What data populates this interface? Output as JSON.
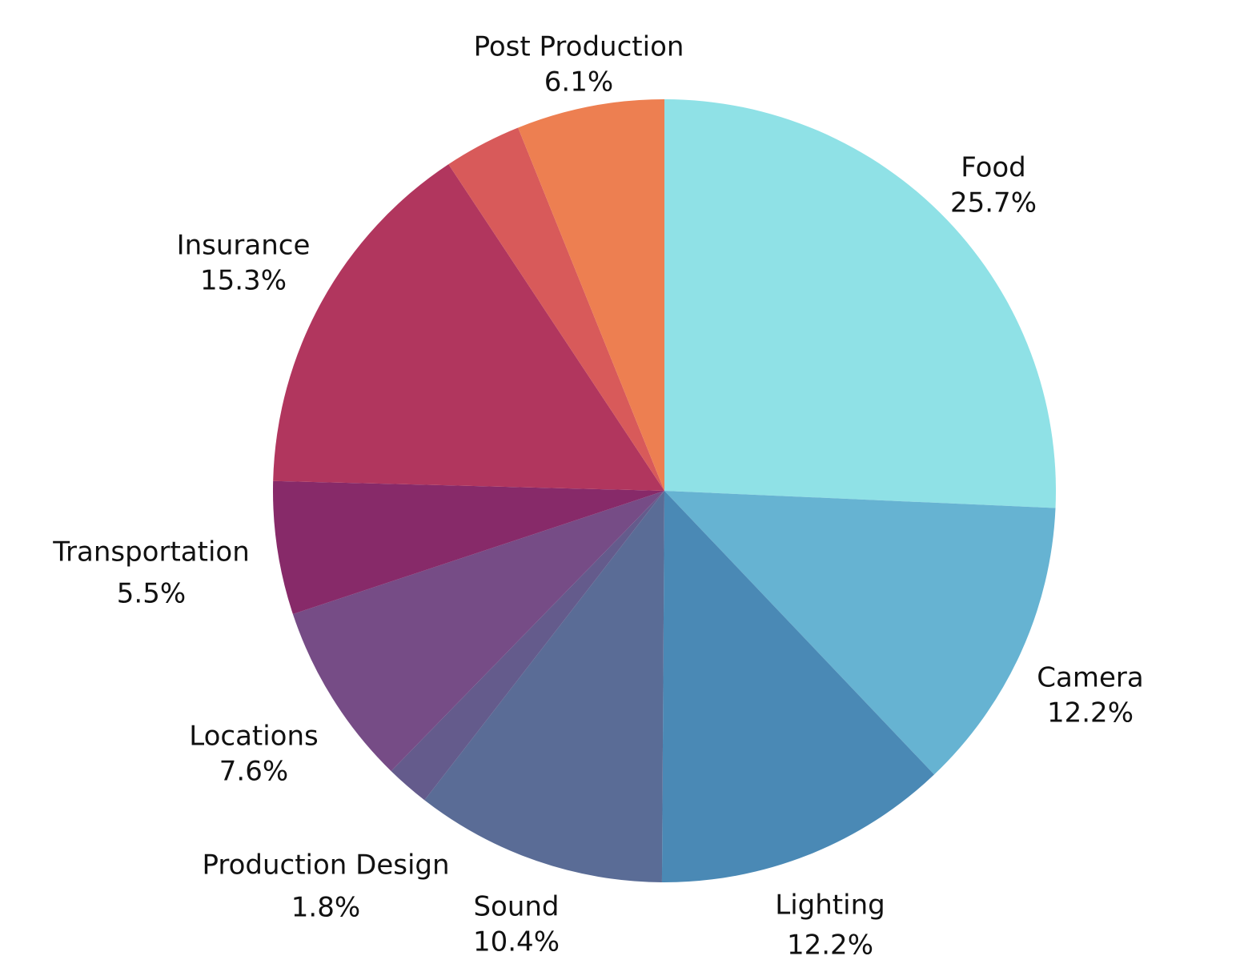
{
  "chart_data": {
    "type": "pie",
    "title": "",
    "start_angle_deg": 0,
    "direction": "clockwise",
    "slices": [
      {
        "label": "Food",
        "value": 25.7,
        "value_label": "25.7%",
        "color": "#8FE1E6"
      },
      {
        "label": "Camera",
        "value": 12.2,
        "value_label": "12.2%",
        "color": "#66B3D2"
      },
      {
        "label": "Lighting",
        "value": 12.2,
        "value_label": "12.2%",
        "color": "#4A89B5"
      },
      {
        "label": "Sound",
        "value": 10.4,
        "value_label": "10.4%",
        "color": "#5A6C96"
      },
      {
        "label": "Production Design",
        "value": 1.8,
        "value_label": "1.8%",
        "color": "#645B8C"
      },
      {
        "label": "Locations",
        "value": 7.6,
        "value_label": "7.6%",
        "color": "#764C86"
      },
      {
        "label": "Transportation",
        "value": 5.5,
        "value_label": "5.5%",
        "color": "#872A69"
      },
      {
        "label": "Insurance",
        "value": 15.3,
        "value_label": "15.3%",
        "color": "#B1365E"
      },
      {
        "label": "",
        "value": 3.2,
        "value_label": "",
        "color": "#D85A5A"
      },
      {
        "label": "Post Production",
        "value": 6.1,
        "value_label": "6.1%",
        "color": "#ED7F51"
      }
    ]
  }
}
